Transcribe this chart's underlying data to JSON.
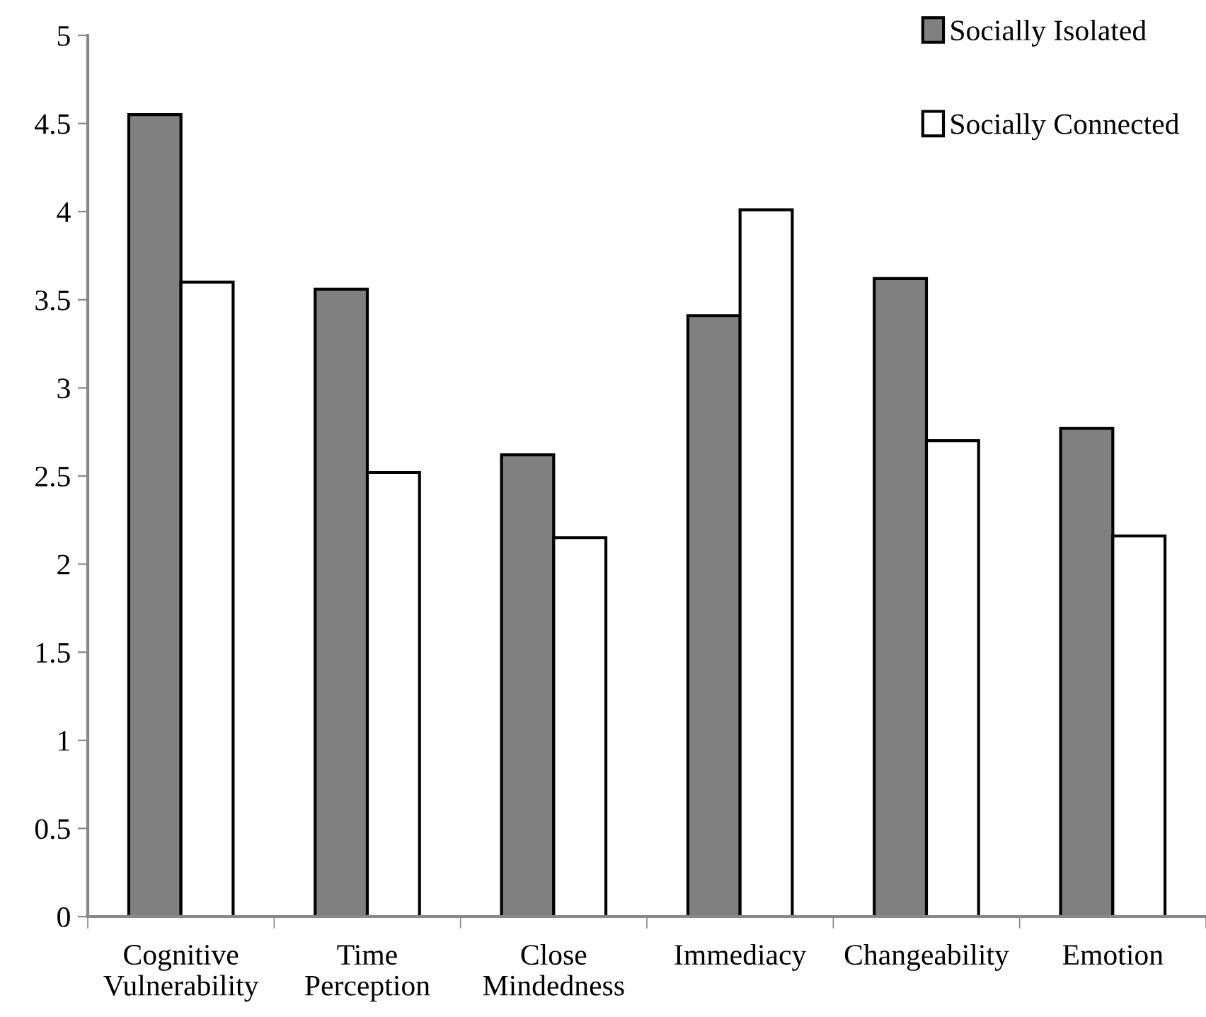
{
  "chart_data": {
    "type": "bar",
    "categories": [
      "Cognitive\nVulnerability",
      "Time\nPerception",
      "Close\nMindedness",
      "Immediacy",
      "Changeability",
      "Emotion"
    ],
    "series": [
      {
        "name": "Socially Isolated",
        "color": "#808080",
        "values": [
          4.55,
          3.56,
          2.62,
          3.41,
          3.62,
          2.77
        ]
      },
      {
        "name": "Socially Connected",
        "color": "#ffffff",
        "values": [
          3.6,
          2.52,
          2.15,
          4.01,
          2.7,
          2.16
        ]
      }
    ],
    "ylim": [
      0,
      5
    ],
    "yticks": [
      0,
      0.5,
      1,
      1.5,
      2,
      2.5,
      3,
      3.5,
      4,
      4.5,
      5
    ],
    "grid": false,
    "legend": "top right"
  }
}
